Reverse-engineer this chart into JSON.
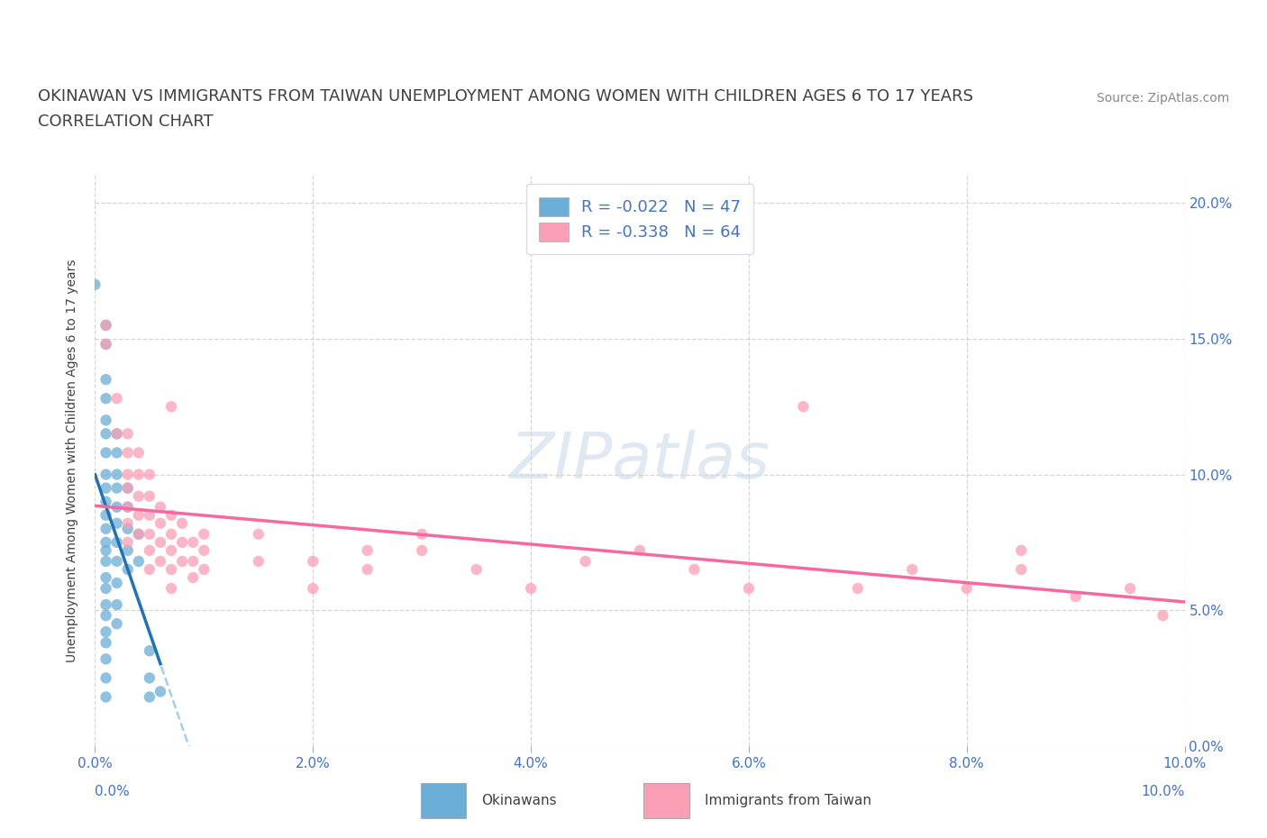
{
  "title_line1": "OKINAWAN VS IMMIGRANTS FROM TAIWAN UNEMPLOYMENT AMONG WOMEN WITH CHILDREN AGES 6 TO 17 YEARS",
  "title_line2": "CORRELATION CHART",
  "source": "Source: ZipAtlas.com",
  "xlim": [
    0,
    0.1
  ],
  "ylim": [
    0,
    0.21
  ],
  "okinawan_color": "#6baed6",
  "taiwan_color": "#fa9fb5",
  "okinawan_line_color": "#2171b5",
  "taiwan_line_color": "#f768a1",
  "dashed_line_color": "#9ecae1",
  "background_color": "#ffffff",
  "grid_color": "#cccccc",
  "title_color": "#404040",
  "axis_tick_color": "#4472c4",
  "ylabel_color": "#404040",
  "okinawan_scatter": [
    [
      0.0,
      0.17
    ],
    [
      0.001,
      0.155
    ],
    [
      0.001,
      0.148
    ],
    [
      0.001,
      0.135
    ],
    [
      0.001,
      0.128
    ],
    [
      0.001,
      0.12
    ],
    [
      0.001,
      0.115
    ],
    [
      0.001,
      0.108
    ],
    [
      0.001,
      0.1
    ],
    [
      0.001,
      0.095
    ],
    [
      0.001,
      0.09
    ],
    [
      0.001,
      0.085
    ],
    [
      0.001,
      0.08
    ],
    [
      0.001,
      0.075
    ],
    [
      0.001,
      0.072
    ],
    [
      0.001,
      0.068
    ],
    [
      0.001,
      0.062
    ],
    [
      0.001,
      0.058
    ],
    [
      0.001,
      0.052
    ],
    [
      0.001,
      0.048
    ],
    [
      0.001,
      0.042
    ],
    [
      0.001,
      0.038
    ],
    [
      0.001,
      0.032
    ],
    [
      0.001,
      0.025
    ],
    [
      0.001,
      0.018
    ],
    [
      0.002,
      0.115
    ],
    [
      0.002,
      0.108
    ],
    [
      0.002,
      0.1
    ],
    [
      0.002,
      0.095
    ],
    [
      0.002,
      0.088
    ],
    [
      0.002,
      0.082
    ],
    [
      0.002,
      0.075
    ],
    [
      0.002,
      0.068
    ],
    [
      0.002,
      0.06
    ],
    [
      0.002,
      0.052
    ],
    [
      0.002,
      0.045
    ],
    [
      0.003,
      0.095
    ],
    [
      0.003,
      0.088
    ],
    [
      0.003,
      0.08
    ],
    [
      0.003,
      0.072
    ],
    [
      0.003,
      0.065
    ],
    [
      0.004,
      0.078
    ],
    [
      0.004,
      0.068
    ],
    [
      0.005,
      0.035
    ],
    [
      0.005,
      0.025
    ],
    [
      0.005,
      0.018
    ],
    [
      0.006,
      0.02
    ]
  ],
  "taiwan_scatter": [
    [
      0.001,
      0.155
    ],
    [
      0.001,
      0.148
    ],
    [
      0.002,
      0.128
    ],
    [
      0.002,
      0.115
    ],
    [
      0.003,
      0.115
    ],
    [
      0.003,
      0.108
    ],
    [
      0.003,
      0.1
    ],
    [
      0.003,
      0.095
    ],
    [
      0.003,
      0.088
    ],
    [
      0.003,
      0.082
    ],
    [
      0.003,
      0.075
    ],
    [
      0.004,
      0.108
    ],
    [
      0.004,
      0.1
    ],
    [
      0.004,
      0.092
    ],
    [
      0.004,
      0.085
    ],
    [
      0.004,
      0.078
    ],
    [
      0.005,
      0.1
    ],
    [
      0.005,
      0.092
    ],
    [
      0.005,
      0.085
    ],
    [
      0.005,
      0.078
    ],
    [
      0.005,
      0.072
    ],
    [
      0.005,
      0.065
    ],
    [
      0.006,
      0.088
    ],
    [
      0.006,
      0.082
    ],
    [
      0.006,
      0.075
    ],
    [
      0.006,
      0.068
    ],
    [
      0.007,
      0.125
    ],
    [
      0.007,
      0.085
    ],
    [
      0.007,
      0.078
    ],
    [
      0.007,
      0.072
    ],
    [
      0.007,
      0.065
    ],
    [
      0.007,
      0.058
    ],
    [
      0.008,
      0.082
    ],
    [
      0.008,
      0.075
    ],
    [
      0.008,
      0.068
    ],
    [
      0.009,
      0.075
    ],
    [
      0.009,
      0.068
    ],
    [
      0.009,
      0.062
    ],
    [
      0.01,
      0.078
    ],
    [
      0.01,
      0.072
    ],
    [
      0.01,
      0.065
    ],
    [
      0.015,
      0.078
    ],
    [
      0.015,
      0.068
    ],
    [
      0.02,
      0.068
    ],
    [
      0.02,
      0.058
    ],
    [
      0.025,
      0.072
    ],
    [
      0.025,
      0.065
    ],
    [
      0.03,
      0.078
    ],
    [
      0.03,
      0.072
    ],
    [
      0.035,
      0.065
    ],
    [
      0.04,
      0.058
    ],
    [
      0.045,
      0.068
    ],
    [
      0.05,
      0.072
    ],
    [
      0.055,
      0.065
    ],
    [
      0.06,
      0.058
    ],
    [
      0.065,
      0.125
    ],
    [
      0.07,
      0.058
    ],
    [
      0.075,
      0.065
    ],
    [
      0.08,
      0.058
    ],
    [
      0.085,
      0.072
    ],
    [
      0.085,
      0.065
    ],
    [
      0.09,
      0.055
    ],
    [
      0.095,
      0.058
    ],
    [
      0.098,
      0.048
    ]
  ]
}
